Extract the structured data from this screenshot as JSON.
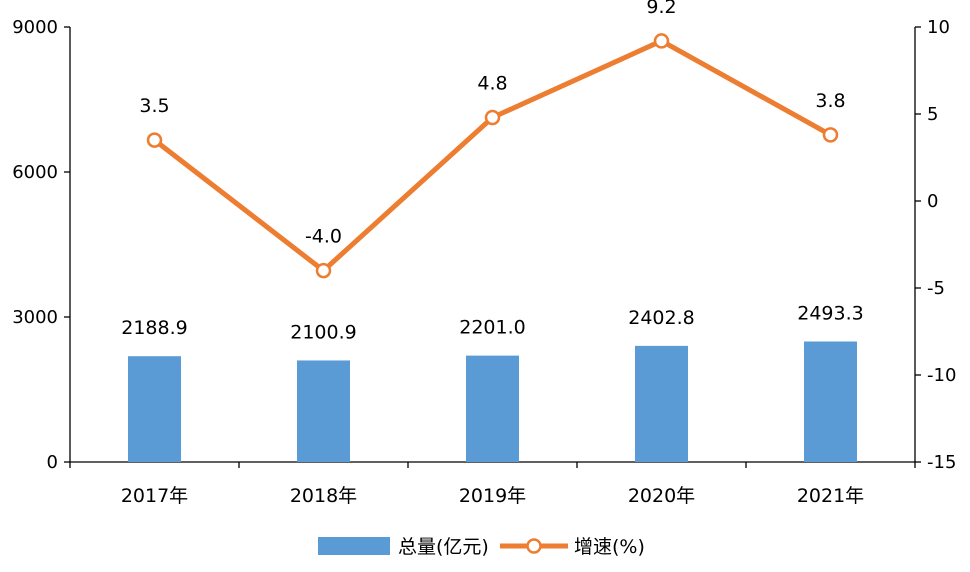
{
  "chart_data": {
    "type": "bar+line",
    "categories": [
      "2017年",
      "2018年",
      "2019年",
      "2020年",
      "2021年"
    ],
    "series": [
      {
        "name": "总量(亿元)",
        "type": "bar",
        "axis": "left",
        "values": [
          2188.9,
          2100.9,
          2201.0,
          2402.8,
          2493.3
        ],
        "labels": [
          "2188.9",
          "2100.9",
          "2201.0",
          "2402.8",
          "2493.3"
        ],
        "color": "#5b9bd5"
      },
      {
        "name": "增速(%)",
        "type": "line",
        "axis": "right",
        "values": [
          3.5,
          -4.0,
          4.8,
          9.2,
          3.8
        ],
        "labels": [
          "3.5",
          "-4.0",
          "4.8",
          "9.2",
          "3.8"
        ],
        "color": "#ed7d31"
      }
    ],
    "y_left": {
      "ylim": [
        0,
        9000
      ],
      "ticks": [
        "0",
        "3000",
        "6000",
        "9000"
      ]
    },
    "y_right": {
      "ylim": [
        -15,
        10
      ],
      "ticks": [
        "-15",
        "-10",
        "-5",
        "0",
        "5",
        "10"
      ]
    },
    "grid": false,
    "legend_position": "bottom"
  }
}
